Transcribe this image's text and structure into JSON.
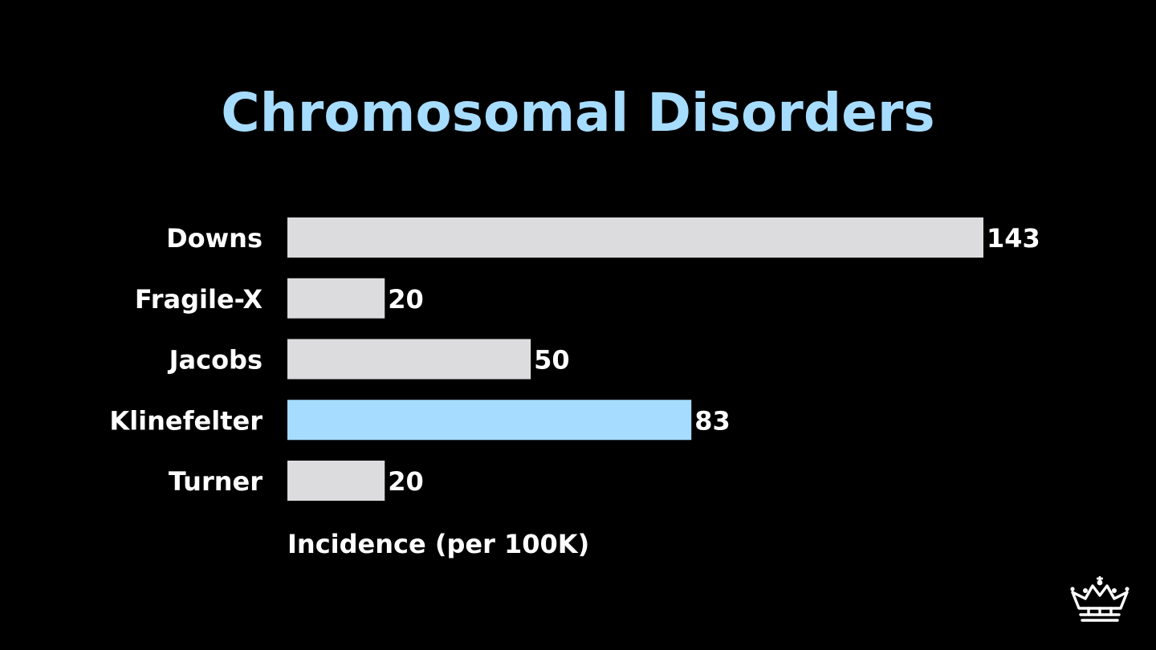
{
  "colors": {
    "background": "#000000",
    "title": "#a6dcff",
    "bar_default": "#dcdcde",
    "bar_highlight": "#a6dcff",
    "text": "#ffffff"
  },
  "chart_data": {
    "type": "bar",
    "orientation": "horizontal",
    "title": "Chromosomal Disorders",
    "xlabel": "Incidence (per 100K)",
    "ylabel": "",
    "categories": [
      "Downs",
      "Fragile-X",
      "Jacobs",
      "Klinefelter",
      "Turner"
    ],
    "values": [
      143,
      20,
      50,
      83,
      20
    ],
    "value_labels": [
      "143",
      "20",
      "50",
      "83",
      "20"
    ],
    "highlighted_category": "Klinefelter",
    "xlim": [
      0,
      143
    ],
    "grid": false,
    "axis_lines": false
  },
  "logo": {
    "icon": "crown-icon"
  }
}
